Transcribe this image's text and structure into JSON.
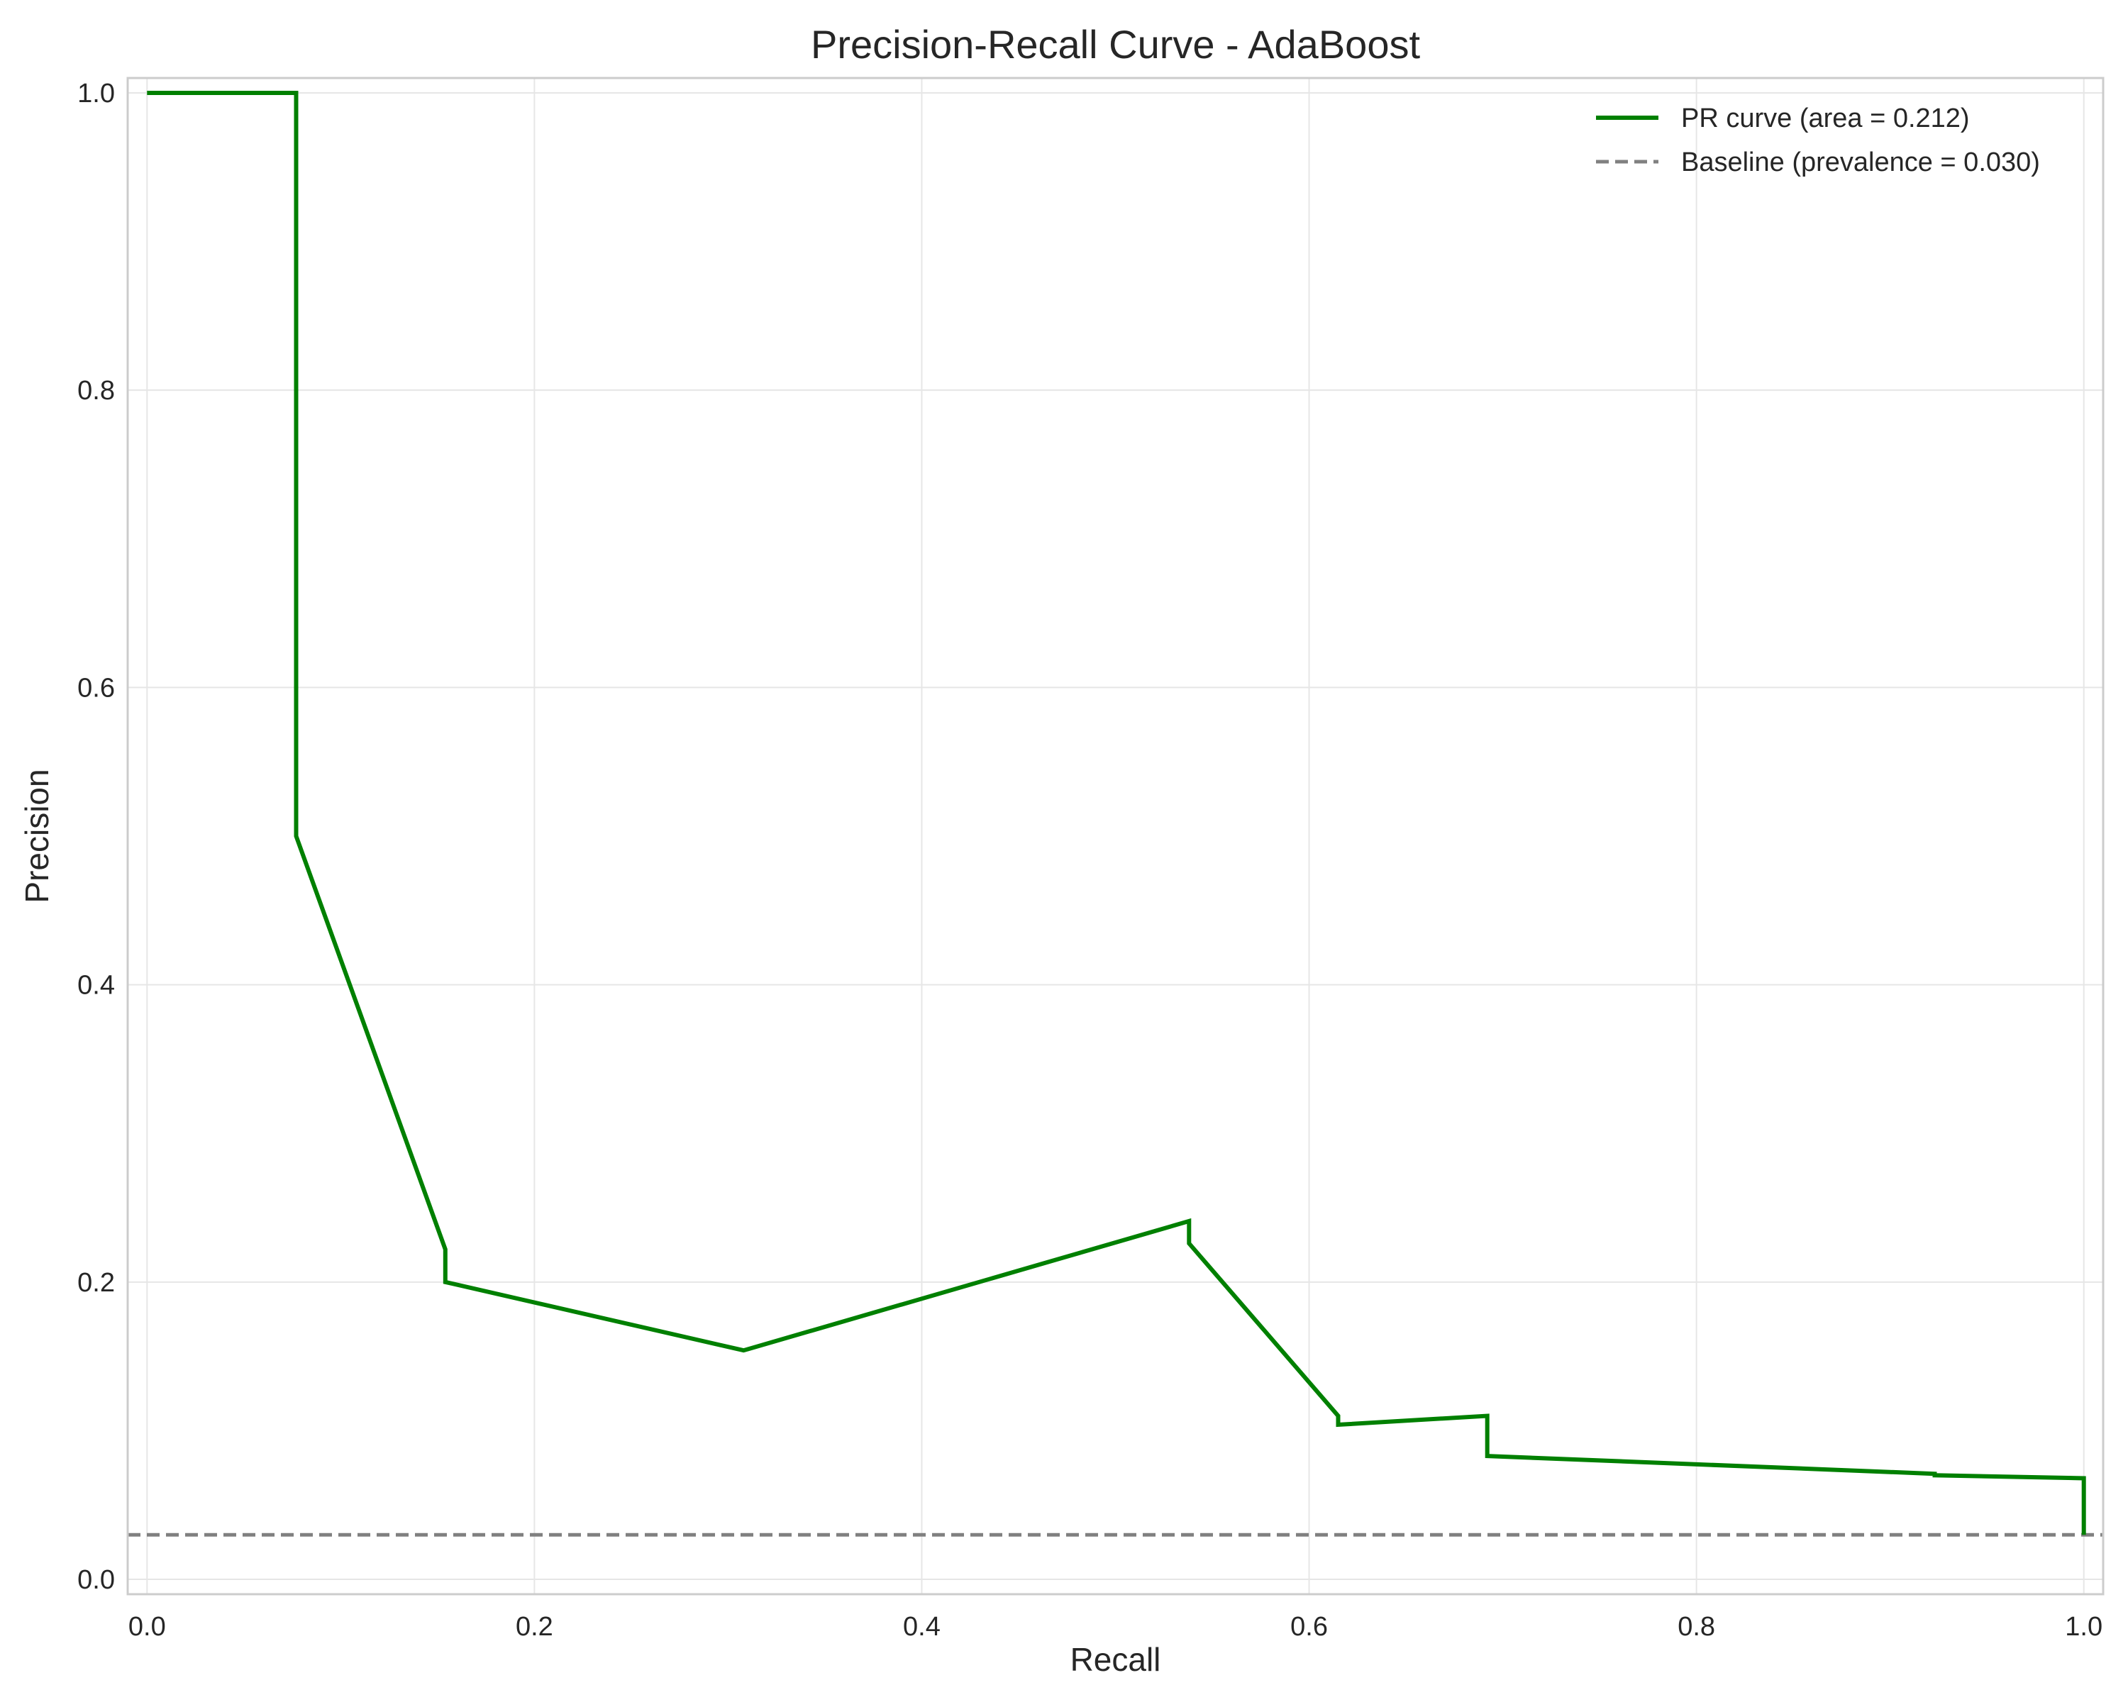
{
  "chart_data": {
    "type": "line",
    "title": "Precision-Recall Curve - AdaBoost",
    "xlabel": "Recall",
    "ylabel": "Precision",
    "xlim": [
      -0.01,
      1.01
    ],
    "ylim": [
      -0.01,
      1.01
    ],
    "x_ticks": [
      "0.0",
      "0.2",
      "0.4",
      "0.6",
      "0.8",
      "1.0"
    ],
    "y_ticks": [
      "0.0",
      "0.2",
      "0.4",
      "0.6",
      "0.8",
      "1.0"
    ],
    "grid": true,
    "legend_position": "top-right",
    "series": [
      {
        "name": "PR curve (area = 0.212)",
        "color": "#008000",
        "style": "solid",
        "x": [
          0.0,
          0.077,
          0.077,
          0.154,
          0.154,
          0.308,
          0.538,
          0.538,
          0.615,
          0.615,
          0.692,
          0.692,
          0.923,
          0.923,
          1.0,
          1.0
        ],
        "y": [
          1.0,
          1.0,
          0.5,
          0.222,
          0.2,
          0.154,
          0.241,
          0.226,
          0.11,
          0.104,
          0.11,
          0.083,
          0.071,
          0.07,
          0.068,
          0.03
        ]
      },
      {
        "name": "Baseline (prevalence = 0.030)",
        "color": "#808080",
        "style": "dashed",
        "x": [
          -0.01,
          1.01
        ],
        "y": [
          0.03,
          0.03
        ]
      }
    ]
  }
}
